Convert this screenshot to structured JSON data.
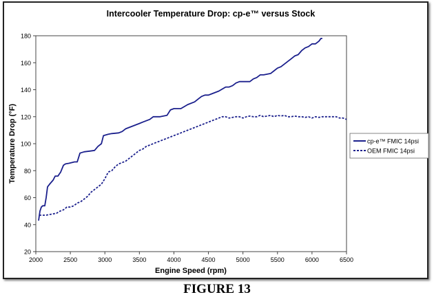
{
  "caption": "FIGURE 13",
  "chart_data": {
    "type": "line",
    "title": "Intercooler Temperature Drop: cp-e™ versus Stock",
    "xlabel": "Engine Speed (rpm)",
    "ylabel": "Temperature Drop (°F)",
    "xlim": [
      2000,
      6500
    ],
    "ylim": [
      20,
      180
    ],
    "xticks": [
      2000,
      2500,
      3000,
      3500,
      4000,
      4500,
      5000,
      5500,
      6000,
      6500
    ],
    "yticks": [
      20,
      40,
      60,
      80,
      100,
      120,
      140,
      160,
      180
    ],
    "grid": false,
    "legend_position": "right",
    "series": [
      {
        "name": "cp-e™ FMIC 14psi",
        "color": "#1a1f8c",
        "style": "solid",
        "points": [
          [
            2040,
            43
          ],
          [
            2060,
            50
          ],
          [
            2080,
            53
          ],
          [
            2100,
            54
          ],
          [
            2130,
            54
          ],
          [
            2150,
            60
          ],
          [
            2170,
            68
          ],
          [
            2200,
            70
          ],
          [
            2250,
            73
          ],
          [
            2280,
            76
          ],
          [
            2320,
            76
          ],
          [
            2360,
            79
          ],
          [
            2400,
            84
          ],
          [
            2430,
            85
          ],
          [
            2480,
            85.5
          ],
          [
            2520,
            86
          ],
          [
            2560,
            86.5
          ],
          [
            2600,
            86.5
          ],
          [
            2640,
            93
          ],
          [
            2700,
            94
          ],
          [
            2780,
            94.5
          ],
          [
            2850,
            95
          ],
          [
            2900,
            98
          ],
          [
            2950,
            100
          ],
          [
            2980,
            106
          ],
          [
            3050,
            107
          ],
          [
            3100,
            107.5
          ],
          [
            3200,
            108
          ],
          [
            3250,
            109
          ],
          [
            3300,
            111
          ],
          [
            3400,
            113
          ],
          [
            3500,
            115
          ],
          [
            3550,
            116
          ],
          [
            3650,
            118
          ],
          [
            3700,
            120
          ],
          [
            3800,
            120
          ],
          [
            3900,
            121
          ],
          [
            3950,
            125
          ],
          [
            4000,
            126
          ],
          [
            4100,
            126
          ],
          [
            4200,
            129
          ],
          [
            4300,
            131
          ],
          [
            4350,
            133
          ],
          [
            4400,
            135
          ],
          [
            4450,
            136
          ],
          [
            4500,
            136
          ],
          [
            4550,
            137
          ],
          [
            4650,
            139
          ],
          [
            4750,
            142
          ],
          [
            4800,
            142
          ],
          [
            4850,
            143
          ],
          [
            4900,
            145
          ],
          [
            4950,
            146
          ],
          [
            5000,
            146
          ],
          [
            5100,
            146
          ],
          [
            5150,
            148
          ],
          [
            5200,
            149
          ],
          [
            5250,
            151
          ],
          [
            5300,
            151
          ],
          [
            5400,
            152
          ],
          [
            5450,
            154
          ],
          [
            5500,
            156
          ],
          [
            5550,
            157
          ],
          [
            5600,
            159
          ],
          [
            5650,
            161
          ],
          [
            5700,
            163
          ],
          [
            5750,
            165
          ],
          [
            5800,
            166
          ],
          [
            5850,
            169
          ],
          [
            5900,
            171
          ],
          [
            5950,
            172
          ],
          [
            6000,
            174
          ],
          [
            6050,
            174
          ],
          [
            6100,
            176
          ],
          [
            6130,
            178
          ],
          [
            6150,
            178
          ]
        ]
      },
      {
        "name": "OEM FMIC 14psi",
        "color": "#1a1f8c",
        "style": "dashed",
        "points": [
          [
            2050,
            47
          ],
          [
            2100,
            47
          ],
          [
            2150,
            47
          ],
          [
            2200,
            47.5
          ],
          [
            2250,
            48
          ],
          [
            2300,
            48.5
          ],
          [
            2350,
            50
          ],
          [
            2400,
            51
          ],
          [
            2450,
            53
          ],
          [
            2500,
            53
          ],
          [
            2550,
            54
          ],
          [
            2600,
            56
          ],
          [
            2650,
            57
          ],
          [
            2700,
            59
          ],
          [
            2750,
            61
          ],
          [
            2800,
            64
          ],
          [
            2850,
            66
          ],
          [
            2900,
            68
          ],
          [
            2950,
            70
          ],
          [
            3000,
            74
          ],
          [
            3050,
            79
          ],
          [
            3100,
            80
          ],
          [
            3150,
            83
          ],
          [
            3200,
            85
          ],
          [
            3250,
            86
          ],
          [
            3300,
            87
          ],
          [
            3350,
            89
          ],
          [
            3400,
            91
          ],
          [
            3450,
            93
          ],
          [
            3500,
            95
          ],
          [
            3550,
            96
          ],
          [
            3600,
            98
          ],
          [
            3650,
            99
          ],
          [
            3700,
            100
          ],
          [
            3750,
            101
          ],
          [
            3800,
            102
          ],
          [
            3850,
            103
          ],
          [
            3900,
            104
          ],
          [
            3950,
            105
          ],
          [
            4000,
            106
          ],
          [
            4050,
            107
          ],
          [
            4100,
            108
          ],
          [
            4150,
            109
          ],
          [
            4200,
            110
          ],
          [
            4250,
            111
          ],
          [
            4300,
            112
          ],
          [
            4350,
            113
          ],
          [
            4400,
            114
          ],
          [
            4450,
            115
          ],
          [
            4500,
            116
          ],
          [
            4550,
            117
          ],
          [
            4600,
            118
          ],
          [
            4650,
            119
          ],
          [
            4700,
            120
          ],
          [
            4750,
            120
          ],
          [
            4800,
            119
          ],
          [
            4850,
            119.5
          ],
          [
            4900,
            120
          ],
          [
            4950,
            120
          ],
          [
            5000,
            119
          ],
          [
            5050,
            120
          ],
          [
            5100,
            120.5
          ],
          [
            5150,
            120
          ],
          [
            5200,
            120
          ],
          [
            5250,
            121
          ],
          [
            5300,
            120
          ],
          [
            5350,
            120.5
          ],
          [
            5400,
            121
          ],
          [
            5450,
            120
          ],
          [
            5500,
            121
          ],
          [
            5550,
            120.5
          ],
          [
            5600,
            121
          ],
          [
            5650,
            120
          ],
          [
            5700,
            120
          ],
          [
            5750,
            120.5
          ],
          [
            5800,
            120
          ],
          [
            5850,
            120
          ],
          [
            5900,
            119.5
          ],
          [
            5950,
            120
          ],
          [
            6000,
            119
          ],
          [
            6050,
            120
          ],
          [
            6100,
            119.5
          ],
          [
            6150,
            120
          ],
          [
            6200,
            120
          ],
          [
            6250,
            120
          ],
          [
            6300,
            120
          ],
          [
            6350,
            120
          ],
          [
            6400,
            119
          ],
          [
            6450,
            119
          ],
          [
            6500,
            118
          ]
        ]
      }
    ]
  }
}
